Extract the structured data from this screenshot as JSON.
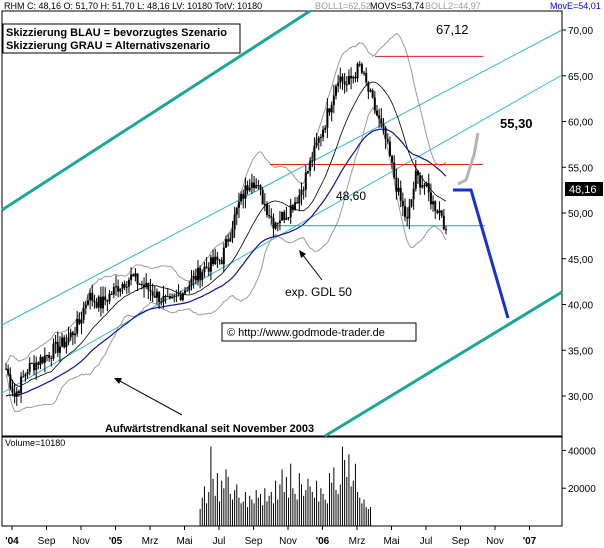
{
  "header": {
    "quote_text": "RHM C: 48,16 O: 51,70 H: 51,70 L: 48,16 LV: 10180 TotV: 10180",
    "boll1": "BOLL1=62,52",
    "movs": "MOVS=53,74",
    "boll2": "BOLL2=44,97",
    "move": "MovE=54,01"
  },
  "legend_box": {
    "line1": "Skizzierung BLAU = bevorzugtes Szenario",
    "line2": "Skizzierung GRAU = Alternativszenario"
  },
  "annotations": {
    "level_top": "67,12",
    "level_mid": "55,30",
    "level_low": "48,60",
    "last_price": "48,16",
    "gdl_label": "exp. GDL 50",
    "copyright": "© http://www.godmode-trader.de",
    "channel_label": "Aufwärtstrendkanal seit November 2003"
  },
  "volume_label": "Volume=10180",
  "colors": {
    "channel": "#1aa79a",
    "channel_thin": "#35b9c9",
    "resistance": "#e0201a",
    "support": "#1aa79a",
    "ema": "#1010a0",
    "bollinger": "#9a9a9a",
    "scenario_blue": "#1a2fd0",
    "scenario_grey": "#b4b4b4",
    "price": "#000000",
    "move_text": "#0000ff"
  },
  "chart_data": {
    "type": "candlestick",
    "y_ticks": [
      "30,00",
      "35,00",
      "40,00",
      "45,00",
      "50,00",
      "55,00",
      "60,00",
      "65,00",
      "70,00"
    ],
    "y_tick_values": [
      30,
      35,
      40,
      45,
      50,
      55,
      60,
      65,
      70
    ],
    "ylim": [
      27,
      72
    ],
    "volume_ticks": [
      "20000",
      "40000"
    ],
    "volume_tick_values": [
      20000,
      40000
    ],
    "volume_ylim": [
      0,
      45000
    ],
    "x_ticks": [
      "'04",
      "Sep",
      "Nov",
      "'05",
      "Mrz",
      "Mai",
      "Jul",
      "Sep",
      "Nov",
      "'06",
      "Mrz",
      "Mai",
      "Jul",
      "Sep",
      "Nov",
      "'07"
    ],
    "levels": [
      {
        "label": "67,12",
        "value": 67.12
      },
      {
        "label": "55,30",
        "value": 55.3
      },
      {
        "label": "48,60",
        "value": 48.6
      }
    ],
    "last_close": 48.16,
    "price_anchors": [
      [
        0,
        33
      ],
      [
        4,
        30
      ],
      [
        10,
        33
      ],
      [
        16,
        34
      ],
      [
        22,
        35
      ],
      [
        28,
        36
      ],
      [
        34,
        38
      ],
      [
        38,
        41
      ],
      [
        44,
        40
      ],
      [
        52,
        42
      ],
      [
        58,
        43
      ],
      [
        64,
        42
      ],
      [
        70,
        41
      ],
      [
        76,
        40
      ],
      [
        84,
        42
      ],
      [
        92,
        44
      ],
      [
        100,
        45
      ],
      [
        108,
        51
      ],
      [
        114,
        54
      ],
      [
        118,
        52
      ],
      [
        124,
        49
      ],
      [
        130,
        50
      ],
      [
        136,
        52
      ],
      [
        142,
        56
      ],
      [
        148,
        60
      ],
      [
        154,
        65
      ],
      [
        158,
        64
      ],
      [
        164,
        66
      ],
      [
        170,
        62
      ],
      [
        176,
        58
      ],
      [
        182,
        52
      ],
      [
        186,
        49
      ],
      [
        190,
        54
      ],
      [
        194,
        53
      ],
      [
        198,
        51
      ],
      [
        202,
        50
      ],
      [
        204,
        48
      ]
    ],
    "volume_bars": [
      0,
      0,
      0,
      0,
      0,
      0,
      0,
      0,
      0,
      0,
      0,
      0,
      0,
      0,
      0,
      0,
      0,
      0,
      0,
      0,
      0,
      0,
      0,
      0,
      0,
      0,
      0,
      0,
      0,
      0,
      0,
      0,
      0,
      0,
      0,
      0,
      0,
      0,
      0,
      0,
      0,
      0,
      0,
      0,
      0,
      0,
      0,
      0,
      0,
      0,
      0,
      0,
      0,
      0,
      0,
      0,
      0,
      0,
      0,
      0,
      0,
      0,
      0,
      0,
      0,
      0,
      0,
      0,
      0,
      0,
      0,
      0,
      0,
      0,
      0,
      0,
      0,
      0,
      0,
      0,
      0,
      0,
      0,
      0,
      0,
      0,
      0,
      0,
      0,
      0,
      9000,
      15000,
      21000,
      12000,
      18000,
      42000,
      25000,
      16000,
      28000,
      13000,
      24000,
      20000,
      30000,
      26000,
      17000,
      14000,
      19000,
      22000,
      15000,
      12000,
      13000,
      18000,
      10000,
      16000,
      14000,
      12000,
      19000,
      15000,
      17000,
      11000,
      20000,
      13000,
      16000,
      18000,
      12000,
      24000,
      14000,
      22000,
      30000,
      18000,
      26000,
      15000,
      33000,
      20000,
      17000,
      14000,
      28000,
      22000,
      16000,
      19000,
      25000,
      21000,
      18000,
      15000,
      24000,
      13000,
      20000,
      17000,
      14000,
      12000,
      28000,
      23000,
      31000,
      19000,
      17000,
      22000,
      42000,
      35000,
      26000,
      38000,
      21000,
      24000,
      33000,
      18000,
      15000,
      12000,
      14000,
      10000,
      9000,
      10000
    ]
  }
}
